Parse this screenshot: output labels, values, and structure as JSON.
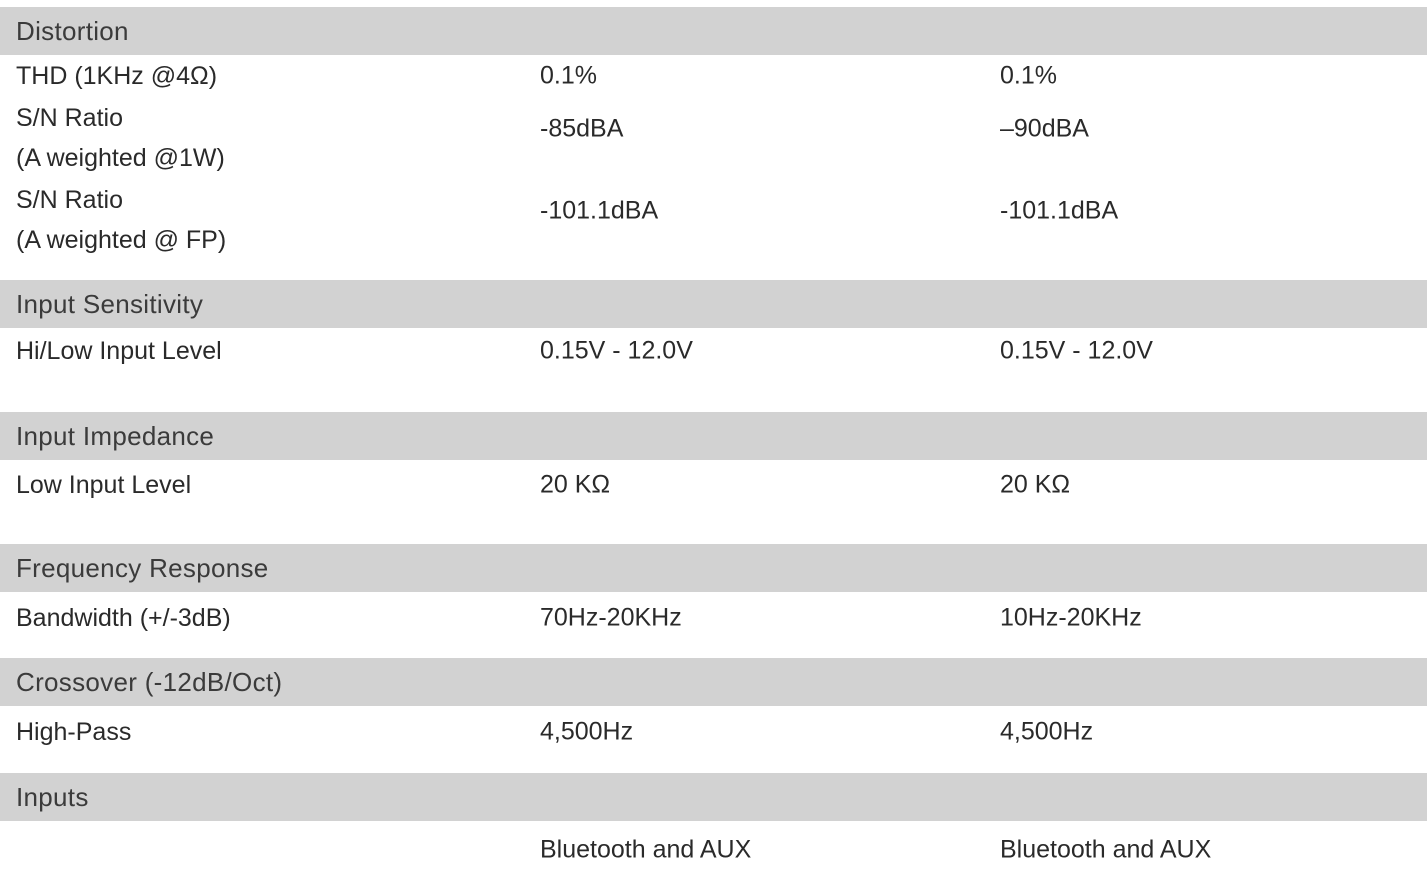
{
  "table": {
    "colors": {
      "header_bar": "#d2d2d2",
      "body_text": "#2a2a2a",
      "header_text": "#3b3b3b"
    },
    "sections": [
      {
        "header": "Distortion",
        "rows": [
          {
            "label_lines": [
              "THD (1KHz @4Ω)"
            ],
            "values": [
              "0.1%",
              "0.1%"
            ]
          },
          {
            "label_lines": [
              "S/N Ratio",
              "(A weighted @1W)"
            ],
            "values": [
              "-85dBA",
              "–90dBA"
            ]
          },
          {
            "label_lines": [
              "S/N Ratio",
              "(A weighted @ FP)"
            ],
            "values": [
              "-101.1dBA",
              "-101.1dBA"
            ]
          }
        ]
      },
      {
        "header": "Input Sensitivity",
        "rows": [
          {
            "label_lines": [
              "Hi/Low Input Level"
            ],
            "values": [
              "0.15V - 12.0V",
              "0.15V - 12.0V"
            ]
          }
        ]
      },
      {
        "header": "Input Impedance",
        "rows": [
          {
            "label_lines": [
              "Low Input Level"
            ],
            "values": [
              "20 KΩ",
              "20 KΩ"
            ]
          }
        ]
      },
      {
        "header": "Frequency Response",
        "rows": [
          {
            "label_lines": [
              "Bandwidth (+/-3dB)"
            ],
            "values": [
              "70Hz-20KHz",
              "10Hz-20KHz"
            ]
          }
        ]
      },
      {
        "header": "Crossover (-12dB/Oct)",
        "rows": [
          {
            "label_lines": [
              "High-Pass"
            ],
            "values": [
              "4,500Hz",
              "4,500Hz"
            ]
          }
        ]
      },
      {
        "header": "Inputs",
        "rows": [
          {
            "values": [
              "Bluetooth and AUX",
              "Bluetooth and AUX"
            ]
          }
        ]
      }
    ]
  }
}
